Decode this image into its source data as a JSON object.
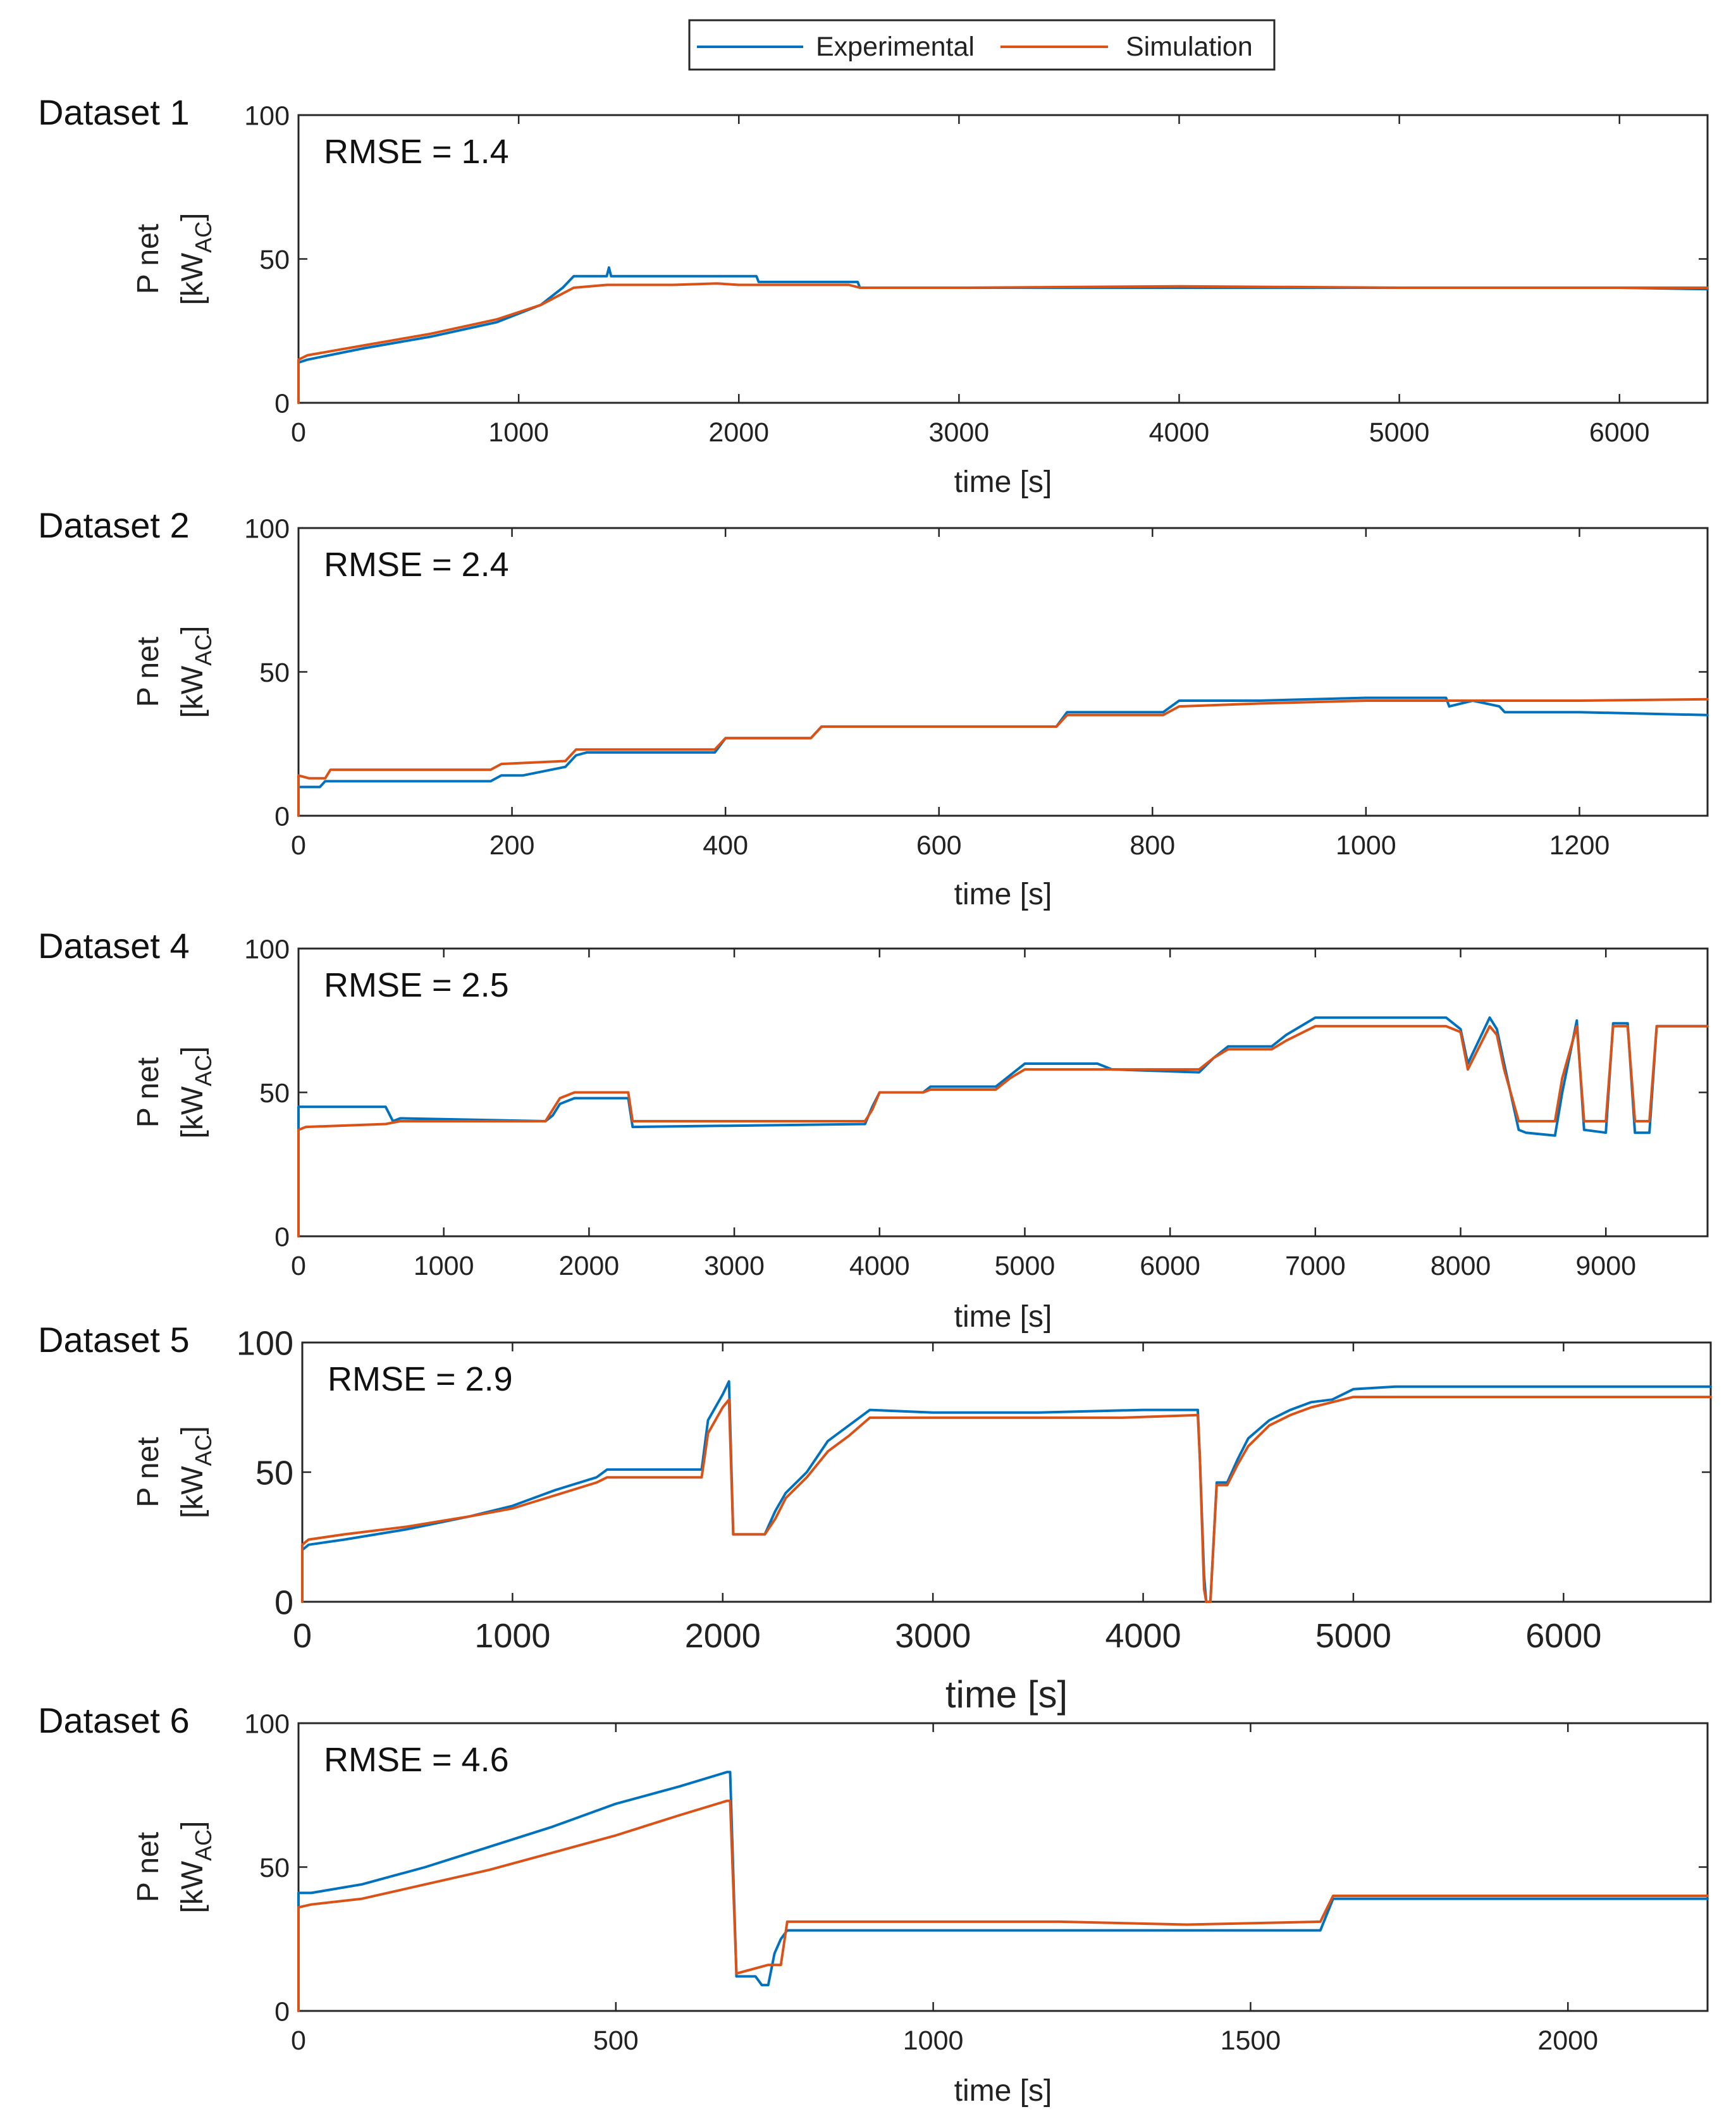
{
  "legend": {
    "items": [
      {
        "name": "Experimental",
        "color": "#0072BD"
      },
      {
        "name": "Simulation",
        "color": "#D95319"
      }
    ]
  },
  "chart_data": [
    {
      "type": "line",
      "label": "Dataset 1",
      "annotation": "RMSE = 1.4",
      "ylabel": "P net",
      "ylabel_unit_main": "[kW",
      "ylabel_unit_sub": "AC",
      "ylabel_unit_close": "]",
      "xlabel": "time [s]",
      "xlim": [
        0,
        6400
      ],
      "ylim": [
        0,
        100
      ],
      "xticks": [
        0,
        1000,
        2000,
        3000,
        4000,
        5000,
        6000
      ],
      "yticks": [
        0,
        50,
        100
      ],
      "series": [
        {
          "name": "Experimental",
          "color": "#0072BD",
          "x": [
            0,
            0,
            40,
            300,
            600,
            900,
            1100,
            1200,
            1250,
            1400,
            1410,
            1420,
            1500,
            1700,
            2080,
            2090,
            2500,
            2540,
            2550,
            3000,
            4000,
            5000,
            6000,
            6400
          ],
          "y": [
            0,
            14,
            15,
            19,
            23,
            28,
            34,
            40,
            44,
            44,
            47,
            44,
            44,
            44,
            44,
            42,
            42,
            42,
            40,
            40,
            40,
            40,
            40,
            39.5
          ]
        },
        {
          "name": "Simulation",
          "color": "#D95319",
          "x": [
            0,
            0,
            40,
            300,
            600,
            900,
            1100,
            1250,
            1400,
            1700,
            1900,
            2000,
            2100,
            2500,
            2550,
            3000,
            4000,
            5000,
            6000,
            6400
          ],
          "y": [
            0,
            15,
            16.5,
            20,
            24,
            29,
            34,
            40,
            41,
            41,
            41.5,
            41,
            41,
            41,
            40,
            40,
            40.5,
            40,
            40,
            40
          ]
        }
      ]
    },
    {
      "type": "line",
      "label": "Dataset 2",
      "annotation": "RMSE = 2.4",
      "ylabel": "P net",
      "ylabel_unit_main": "[kW",
      "ylabel_unit_sub": "AC",
      "ylabel_unit_close": "]",
      "xlabel": "time [s]",
      "xlim": [
        0,
        1320
      ],
      "ylim": [
        0,
        100
      ],
      "xticks": [
        0,
        200,
        400,
        600,
        800,
        1000,
        1200
      ],
      "yticks": [
        0,
        50,
        100
      ],
      "series": [
        {
          "name": "Experimental",
          "color": "#0072BD",
          "x": [
            0,
            0,
            20,
            25,
            180,
            190,
            210,
            250,
            260,
            270,
            390,
            400,
            480,
            490,
            700,
            710,
            720,
            800,
            810,
            825,
            900,
            1000,
            1075,
            1078,
            1100,
            1125,
            1130,
            1200,
            1320
          ],
          "y": [
            0,
            10,
            10,
            12,
            12,
            14,
            14,
            17,
            21,
            22,
            22,
            27,
            27,
            31,
            31,
            31,
            36,
            36,
            36,
            40,
            40,
            41,
            41,
            38,
            40,
            38,
            36,
            36,
            35
          ]
        },
        {
          "name": "Simulation",
          "color": "#D95319",
          "x": [
            0,
            0,
            10,
            25,
            30,
            180,
            190,
            250,
            260,
            390,
            400,
            480,
            490,
            710,
            720,
            810,
            825,
            900,
            1000,
            1080,
            1200,
            1320
          ],
          "y": [
            0,
            14,
            13,
            13,
            16,
            16,
            18,
            19,
            23,
            23,
            27,
            27,
            31,
            31,
            35,
            35,
            38,
            39,
            40,
            40,
            40,
            40.5
          ]
        }
      ]
    },
    {
      "type": "line",
      "label": "Dataset 4",
      "annotation": "RMSE = 2.5",
      "ylabel": "P net",
      "ylabel_unit_main": "[kW",
      "ylabel_unit_sub": "AC",
      "ylabel_unit_close": "]",
      "xlabel": "time [s]",
      "xlim": [
        0,
        9700
      ],
      "ylim": [
        0,
        100
      ],
      "xticks": [
        0,
        1000,
        2000,
        3000,
        4000,
        5000,
        6000,
        7000,
        8000,
        9000
      ],
      "yticks": [
        0,
        50,
        100
      ],
      "series": [
        {
          "name": "Experimental",
          "color": "#0072BD",
          "x": [
            0,
            0,
            20,
            600,
            650,
            700,
            1700,
            1750,
            1800,
            1900,
            2270,
            2300,
            3900,
            3950,
            4000,
            4300,
            4350,
            4800,
            4900,
            5000,
            5500,
            5600,
            6200,
            6300,
            6400,
            6700,
            6800,
            7000,
            7900,
            8000,
            8050,
            8200,
            8250,
            8300,
            8400,
            8450,
            8650,
            8700,
            8800,
            8850,
            9000,
            9050,
            9150,
            9200,
            9300,
            9350,
            9700
          ],
          "y": [
            0,
            45,
            45,
            45,
            40,
            41,
            40,
            42,
            46,
            48,
            48,
            38,
            39,
            45,
            50,
            50,
            52,
            52,
            56,
            60,
            60,
            58,
            57,
            62,
            66,
            66,
            70,
            76,
            76,
            72,
            60,
            76,
            72,
            60,
            37,
            36,
            35,
            50,
            75,
            37,
            36,
            74,
            74,
            36,
            36,
            73,
            73
          ]
        },
        {
          "name": "Simulation",
          "color": "#D95319",
          "x": [
            0,
            0,
            50,
            600,
            700,
            1700,
            1750,
            1800,
            1900,
            2270,
            2300,
            3900,
            3950,
            4000,
            4300,
            4350,
            4800,
            4900,
            5000,
            5500,
            6200,
            6300,
            6400,
            6700,
            6800,
            7000,
            7900,
            8000,
            8050,
            8200,
            8250,
            8300,
            8400,
            8450,
            8650,
            8700,
            8800,
            8850,
            9000,
            9050,
            9150,
            9200,
            9300,
            9350,
            9700
          ],
          "y": [
            0,
            37,
            38,
            39,
            40,
            40,
            44,
            48,
            50,
            50,
            40,
            40,
            44,
            50,
            50,
            51,
            51,
            55,
            58,
            58,
            58,
            62,
            65,
            65,
            68,
            73,
            73,
            71,
            58,
            73,
            70,
            58,
            40,
            40,
            40,
            55,
            73,
            40,
            40,
            73,
            73,
            40,
            40,
            73,
            73
          ]
        }
      ]
    },
    {
      "type": "line",
      "label": "Dataset 5",
      "annotation": "RMSE = 2.9",
      "ylabel": "P net",
      "ylabel_unit_main": "[kW",
      "ylabel_unit_sub": "AC",
      "ylabel_unit_close": "]",
      "xlabel": "time [s]",
      "xlim": [
        0,
        6700
      ],
      "ylim": [
        0,
        100
      ],
      "xticks": [
        0,
        1000,
        2000,
        3000,
        4000,
        5000,
        6000
      ],
      "yticks": [
        0,
        50,
        100
      ],
      "series": [
        {
          "name": "Experimental",
          "color": "#0072BD",
          "x": [
            0,
            0,
            30,
            200,
            500,
            800,
            1000,
            1200,
            1400,
            1450,
            1700,
            1900,
            1930,
            2000,
            2030,
            2050,
            2200,
            2250,
            2300,
            2400,
            2500,
            2600,
            2700,
            3000,
            3500,
            4000,
            4260,
            4270,
            4290,
            4300,
            4320,
            4350,
            4400,
            4450,
            4500,
            4600,
            4700,
            4800,
            4900,
            5000,
            5200,
            5500,
            6000,
            6500,
            6700
          ],
          "y": [
            0,
            20,
            22,
            24,
            28,
            33,
            37,
            43,
            48,
            51,
            51,
            51,
            70,
            80,
            85,
            26,
            26,
            35,
            42,
            50,
            62,
            68,
            74,
            73,
            73,
            74,
            74,
            55,
            10,
            0,
            0,
            46,
            46,
            55,
            63,
            70,
            74,
            77,
            78,
            82,
            83,
            83,
            83,
            83,
            83
          ]
        },
        {
          "name": "Simulation",
          "color": "#D95319",
          "x": [
            0,
            0,
            30,
            200,
            500,
            800,
            1000,
            1200,
            1400,
            1450,
            1700,
            1900,
            1930,
            2000,
            2030,
            2050,
            2200,
            2250,
            2300,
            2400,
            2500,
            2600,
            2700,
            3000,
            3500,
            3900,
            4260,
            4270,
            4290,
            4300,
            4320,
            4350,
            4400,
            4450,
            4500,
            4600,
            4700,
            4800,
            4900,
            5000,
            5200,
            5500,
            6000,
            6500,
            6700
          ],
          "y": [
            0,
            22,
            24,
            26,
            29,
            33,
            36,
            41,
            46,
            48,
            48,
            48,
            65,
            75,
            78,
            26,
            26,
            32,
            40,
            48,
            58,
            64,
            71,
            71,
            71,
            71,
            72,
            55,
            5,
            0,
            0,
            45,
            45,
            53,
            60,
            68,
            72,
            75,
            77,
            79,
            79,
            79,
            79,
            79,
            79
          ]
        }
      ]
    },
    {
      "type": "line",
      "label": "Dataset 6",
      "annotation": "RMSE = 4.6",
      "ylabel": "P net",
      "ylabel_unit_main": "[kW",
      "ylabel_unit_sub": "AC",
      "ylabel_unit_close": "]",
      "xlabel": "time [s]",
      "xlim": [
        0,
        2220
      ],
      "ylim": [
        0,
        100
      ],
      "xticks": [
        0,
        500,
        1000,
        1500,
        2000
      ],
      "yticks": [
        0,
        50,
        100
      ],
      "series": [
        {
          "name": "Experimental",
          "color": "#0072BD",
          "x": [
            0,
            0,
            20,
            100,
            200,
            300,
            400,
            500,
            600,
            675,
            680,
            690,
            720,
            730,
            740,
            750,
            760,
            770,
            800,
            1000,
            1200,
            1400,
            1610,
            1630,
            1700,
            2000,
            2220
          ],
          "y": [
            0,
            41,
            41,
            44,
            50,
            57,
            64,
            72,
            78,
            83,
            83,
            12,
            12,
            9,
            9,
            20,
            25,
            28,
            28,
            28,
            28,
            28,
            28,
            39,
            39,
            39,
            39
          ]
        },
        {
          "name": "Simulation",
          "color": "#D95319",
          "x": [
            0,
            0,
            20,
            100,
            200,
            300,
            400,
            500,
            600,
            675,
            680,
            690,
            740,
            760,
            770,
            800,
            1000,
            1200,
            1400,
            1610,
            1630,
            1700,
            2000,
            2220
          ],
          "y": [
            0,
            36,
            37,
            39,
            44,
            49,
            55,
            61,
            68,
            73,
            73,
            13,
            16,
            16,
            31,
            31,
            31,
            31,
            30,
            31,
            40,
            40,
            40,
            40
          ]
        }
      ]
    }
  ]
}
